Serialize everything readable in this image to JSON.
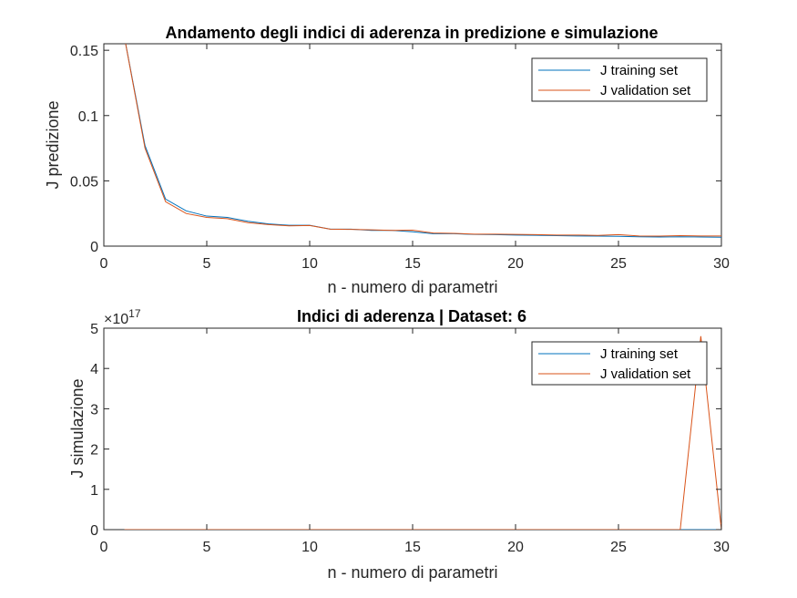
{
  "chart_data": [
    {
      "type": "line",
      "title": "Andamento degli indici di aderenza in predizione e simulazione",
      "xlabel": "n - numero di parametri",
      "ylabel": "J predizione",
      "xlim": [
        0,
        30
      ],
      "ylim": [
        0,
        0.155
      ],
      "xticks": [
        "0",
        "5",
        "10",
        "15",
        "20",
        "25",
        "30"
      ],
      "yticks": [
        "0",
        "0.05",
        "0.1",
        "0.15"
      ],
      "ytick_values": [
        0,
        0.05,
        0.1,
        0.15
      ],
      "exponent": "",
      "grid": false,
      "legend_position": "top-right",
      "x": [
        1,
        2,
        3,
        4,
        5,
        6,
        7,
        8,
        9,
        10,
        11,
        12,
        13,
        14,
        15,
        16,
        17,
        18,
        19,
        20,
        21,
        22,
        23,
        24,
        25,
        26,
        27,
        28,
        29,
        30
      ],
      "series": [
        {
          "name": "J training set",
          "color": "#0072BD",
          "values": [
            0.16,
            0.077,
            0.036,
            0.027,
            0.023,
            0.022,
            0.019,
            0.017,
            0.016,
            0.016,
            0.013,
            0.013,
            0.012,
            0.012,
            0.011,
            0.0095,
            0.0095,
            0.009,
            0.0088,
            0.0085,
            0.0083,
            0.008,
            0.0078,
            0.0077,
            0.0075,
            0.0072,
            0.007,
            0.0072,
            0.007,
            0.0068
          ]
        },
        {
          "name": "J validation set",
          "color": "#D95319",
          "values": [
            0.16,
            0.075,
            0.034,
            0.025,
            0.022,
            0.021,
            0.018,
            0.0165,
            0.0155,
            0.0158,
            0.013,
            0.0128,
            0.0125,
            0.012,
            0.0122,
            0.01,
            0.0098,
            0.0092,
            0.0092,
            0.009,
            0.0088,
            0.0085,
            0.0085,
            0.0082,
            0.0088,
            0.0078,
            0.0077,
            0.008,
            0.0078,
            0.0078
          ]
        }
      ]
    },
    {
      "type": "line",
      "title": "Indici di aderenza | Dataset: 6",
      "xlabel": "n - numero di parametri",
      "ylabel": "J simulazione",
      "xlim": [
        0,
        30
      ],
      "ylim": [
        0,
        5e+17
      ],
      "xticks": [
        "0",
        "5",
        "10",
        "15",
        "20",
        "25",
        "30"
      ],
      "yticks": [
        "0",
        "1",
        "2",
        "3",
        "4",
        "5"
      ],
      "ytick_values": [
        0,
        1e+17,
        2e+17,
        3e+17,
        4e+17,
        5e+17
      ],
      "exponent": "×10",
      "exponent_power": "17",
      "grid": false,
      "legend_position": "top-right",
      "x": [
        1,
        2,
        3,
        4,
        5,
        6,
        7,
        8,
        9,
        10,
        11,
        12,
        13,
        14,
        15,
        16,
        17,
        18,
        19,
        20,
        21,
        22,
        23,
        24,
        25,
        26,
        27,
        28,
        29,
        30
      ],
      "series": [
        {
          "name": "J training set",
          "color": "#0072BD",
          "values": [
            0,
            0,
            0,
            0,
            0,
            0,
            0,
            0,
            0,
            0,
            0,
            0,
            0,
            0,
            0,
            0,
            0,
            0,
            0,
            0,
            0,
            0,
            0,
            0,
            0,
            0,
            0,
            0,
            0,
            0
          ]
        },
        {
          "name": "J validation set",
          "color": "#D95319",
          "values": [
            0,
            0,
            0,
            0,
            0,
            0,
            0,
            0,
            0,
            0,
            0,
            0,
            0,
            0,
            0,
            0,
            0,
            0,
            0,
            0,
            0,
            0,
            0,
            0,
            0,
            0,
            0,
            0,
            4.8e+17,
            0
          ]
        }
      ]
    }
  ]
}
